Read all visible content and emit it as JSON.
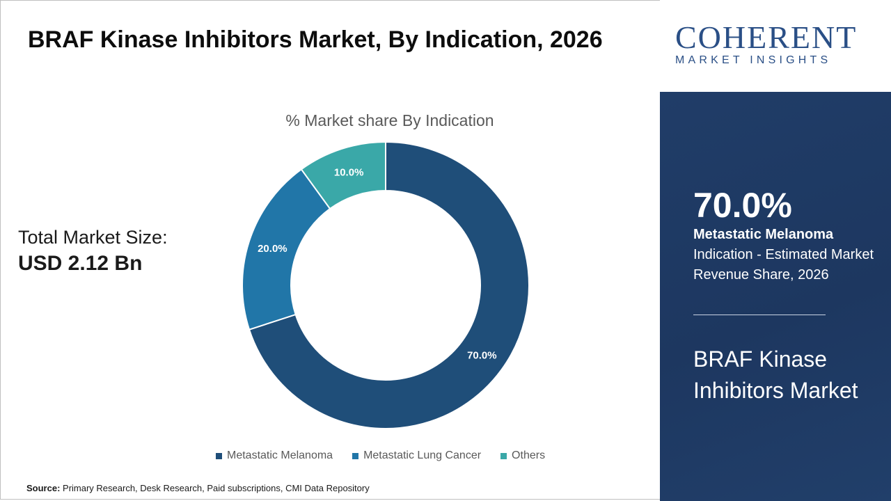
{
  "title": "BRAF Kinase Inhibitors Market, By Indication, 2026",
  "total_market": {
    "label": "Total Market Size:",
    "value": "USD 2.12 Bn"
  },
  "source": {
    "label": "Source:",
    "text": " Primary Research, Desk Research, Paid subscriptions, CMI Data Repository"
  },
  "logo": {
    "word": "COHERENT",
    "sub": "MARKET INSIGHTS"
  },
  "sidebar": {
    "highlight_pct": "70.0%",
    "highlight_segment": "Metastatic Melanoma",
    "highlight_desc": "Indication - Estimated Market Revenue Share, 2026",
    "market_name": "BRAF Kinase Inhibitors Market"
  },
  "chart_data": {
    "type": "pie",
    "title": "% Market share By Indication",
    "categories": [
      "Metastatic Melanoma",
      "Metastatic Lung Cancer",
      "Others"
    ],
    "values": [
      70.0,
      20.0,
      10.0
    ],
    "data_labels": [
      "70.0%",
      "20.0%",
      "10.0%"
    ],
    "colors": [
      "#1f4e79",
      "#2176a8",
      "#3aa8a8"
    ],
    "legend_position": "bottom"
  }
}
